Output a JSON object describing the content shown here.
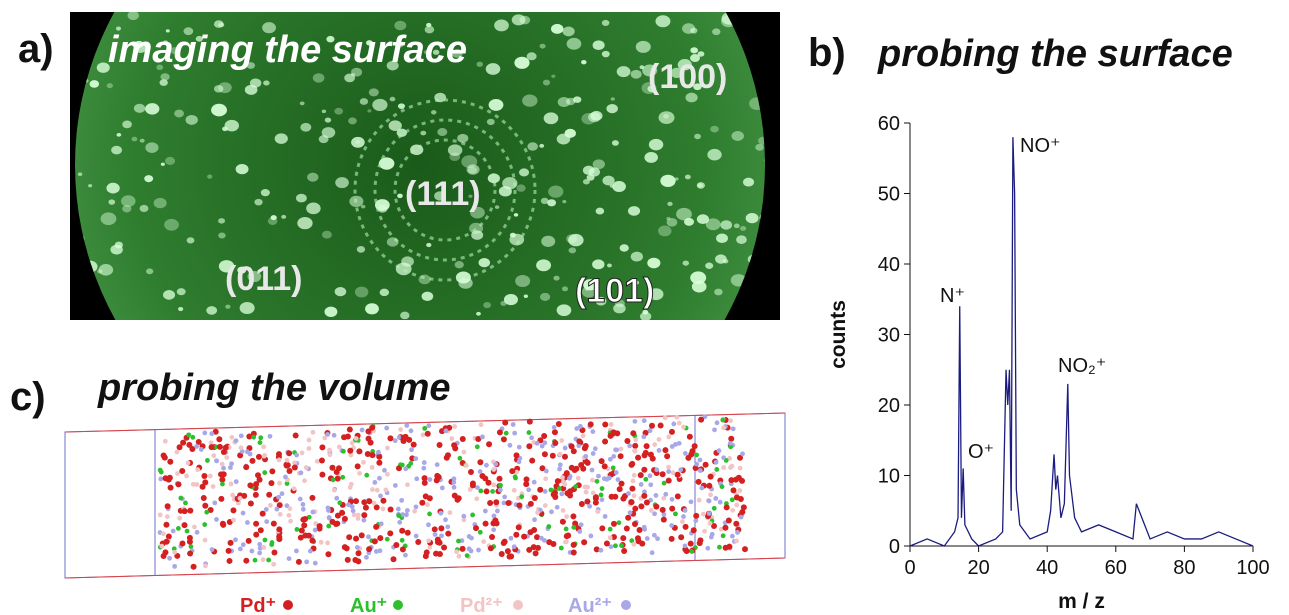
{
  "panel_a": {
    "label": "a)",
    "title": "imaging the surface",
    "facets": [
      "(100)",
      "(111)",
      "(011)",
      "(101)"
    ]
  },
  "chart_data": {
    "type": "line",
    "label": "b)",
    "title": "probing the surface",
    "x_label": "m / z",
    "y_label": "counts",
    "x": [
      0,
      5,
      10,
      13,
      14,
      14.5,
      15,
      15.5,
      16,
      17,
      18,
      20,
      25,
      27,
      28,
      28.5,
      29,
      29.5,
      30,
      30.5,
      31,
      32,
      35,
      40,
      41,
      42,
      42.5,
      43,
      44,
      45,
      46,
      46.5,
      47,
      48,
      50,
      55,
      60,
      65,
      66,
      70,
      75,
      80,
      85,
      90,
      95,
      100
    ],
    "series": [
      {
        "name": "counts",
        "color": "#1c1c80",
        "values": [
          0,
          1,
          0,
          2,
          4,
          34,
          4,
          11,
          3,
          2,
          1,
          0,
          1,
          2,
          25,
          20,
          25,
          5,
          58,
          50,
          8,
          3,
          1,
          2,
          5,
          13,
          8,
          10,
          4,
          6,
          23,
          10,
          8,
          4,
          2,
          3,
          2,
          1,
          6,
          1,
          2,
          1,
          1,
          2,
          1,
          0
        ]
      }
    ],
    "xlim": [
      0,
      100
    ],
    "ylim": [
      0,
      60
    ],
    "xticks": [
      0,
      20,
      40,
      60,
      80,
      100
    ],
    "yticks": [
      0,
      10,
      20,
      30,
      40,
      50,
      60
    ],
    "annotations": [
      "N⁺",
      "O⁺",
      "NO⁺",
      "NO₂⁺"
    ]
  },
  "panel_c": {
    "label": "c)",
    "title": "probing the volume",
    "legend": [
      {
        "name": "Pd⁺",
        "color": "#d42020"
      },
      {
        "name": "Au⁺",
        "color": "#2cc02c"
      },
      {
        "name": "Pd²⁺",
        "color": "#f2c4c4"
      },
      {
        "name": "Au²⁺",
        "color": "#a8a8e8"
      }
    ]
  }
}
